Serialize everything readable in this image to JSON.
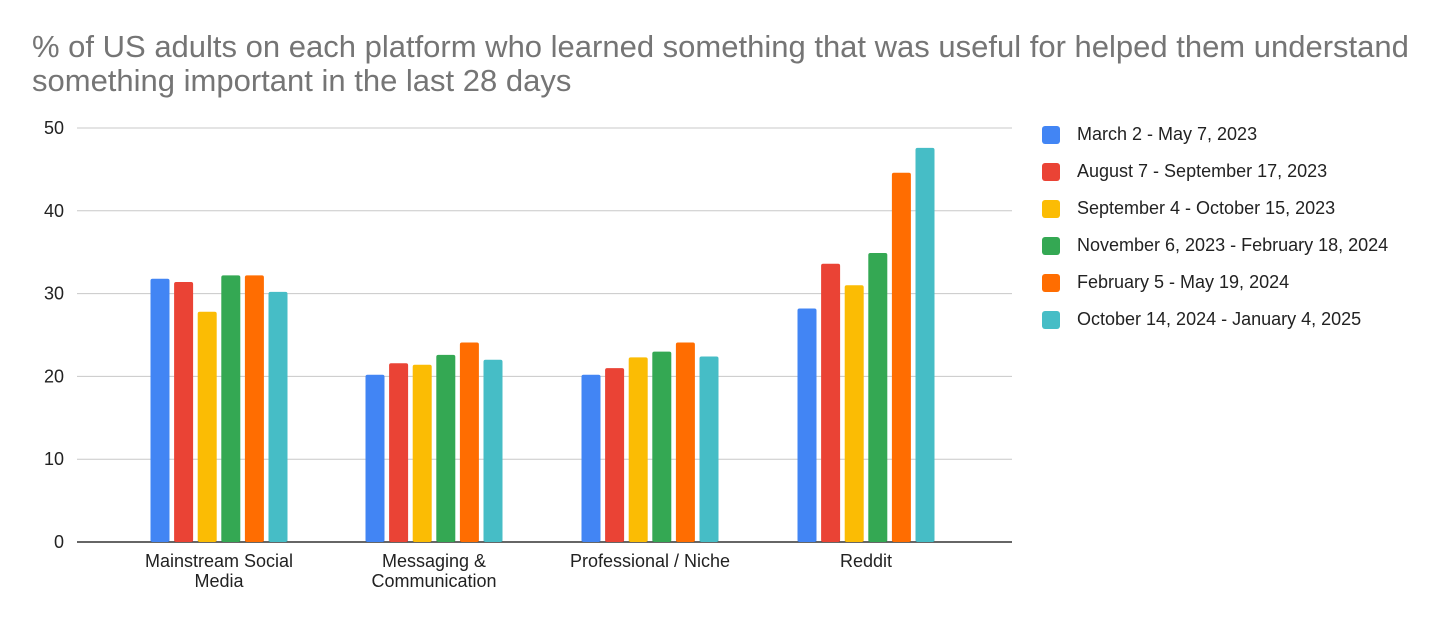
{
  "chart_data": {
    "type": "bar",
    "title": "% of US adults on each platform who learned something that was useful for helped them understand something important in the last 28 days",
    "xlabel": "",
    "ylabel": "",
    "ylim": [
      0,
      50
    ],
    "yticks": [
      "0",
      "10",
      "20",
      "30",
      "40",
      "50"
    ],
    "grid": true,
    "legend_position": "right",
    "categories": [
      [
        "Mainstream Social",
        "Media"
      ],
      [
        "Messaging &",
        "Communication"
      ],
      [
        "Professional / Niche"
      ],
      [
        "Reddit"
      ]
    ],
    "series": [
      {
        "name": "March 2 - May 7, 2023",
        "color": "#4285F4",
        "values": [
          31.8,
          20.2,
          20.2,
          28.2
        ]
      },
      {
        "name": "August 7 - September 17, 2023",
        "color": "#EA4335",
        "values": [
          31.4,
          21.6,
          21.0,
          33.6
        ]
      },
      {
        "name": "September 4 - October 15, 2023",
        "color": "#FBBC04",
        "values": [
          27.8,
          21.4,
          22.3,
          31.0
        ]
      },
      {
        "name": "November 6, 2023 - February 18, 2024",
        "color": "#34A853",
        "values": [
          32.2,
          22.6,
          23.0,
          34.9
        ]
      },
      {
        "name": "February 5 - May 19, 2024",
        "color": "#FF6D01",
        "values": [
          32.2,
          24.1,
          24.1,
          44.6
        ]
      },
      {
        "name": "October 14, 2024 - January 4, 2025",
        "color": "#46BDC6",
        "values": [
          30.2,
          22.0,
          22.4,
          47.6
        ]
      }
    ]
  }
}
